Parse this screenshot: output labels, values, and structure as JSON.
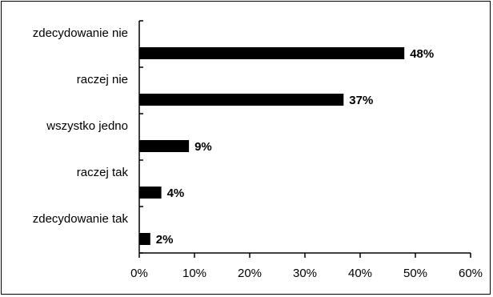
{
  "chart_data": {
    "type": "bar",
    "orientation": "horizontal",
    "categories": [
      "zdecydowanie nie",
      "raczej nie",
      "wszystko jedno",
      "raczej tak",
      "zdecydowanie tak"
    ],
    "values": [
      48,
      37,
      9,
      4,
      2
    ],
    "value_labels": [
      "48%",
      "37%",
      "9%",
      "4%",
      "2%"
    ],
    "xlim": [
      0,
      60
    ],
    "x_ticks": [
      0,
      10,
      20,
      30,
      40,
      50,
      60
    ],
    "x_tick_labels": [
      "0%",
      "10%",
      "20%",
      "30%",
      "40%",
      "50%",
      "60%"
    ],
    "title": "",
    "xlabel": "",
    "ylabel": "",
    "grid": false,
    "bar_color": "#000000"
  }
}
